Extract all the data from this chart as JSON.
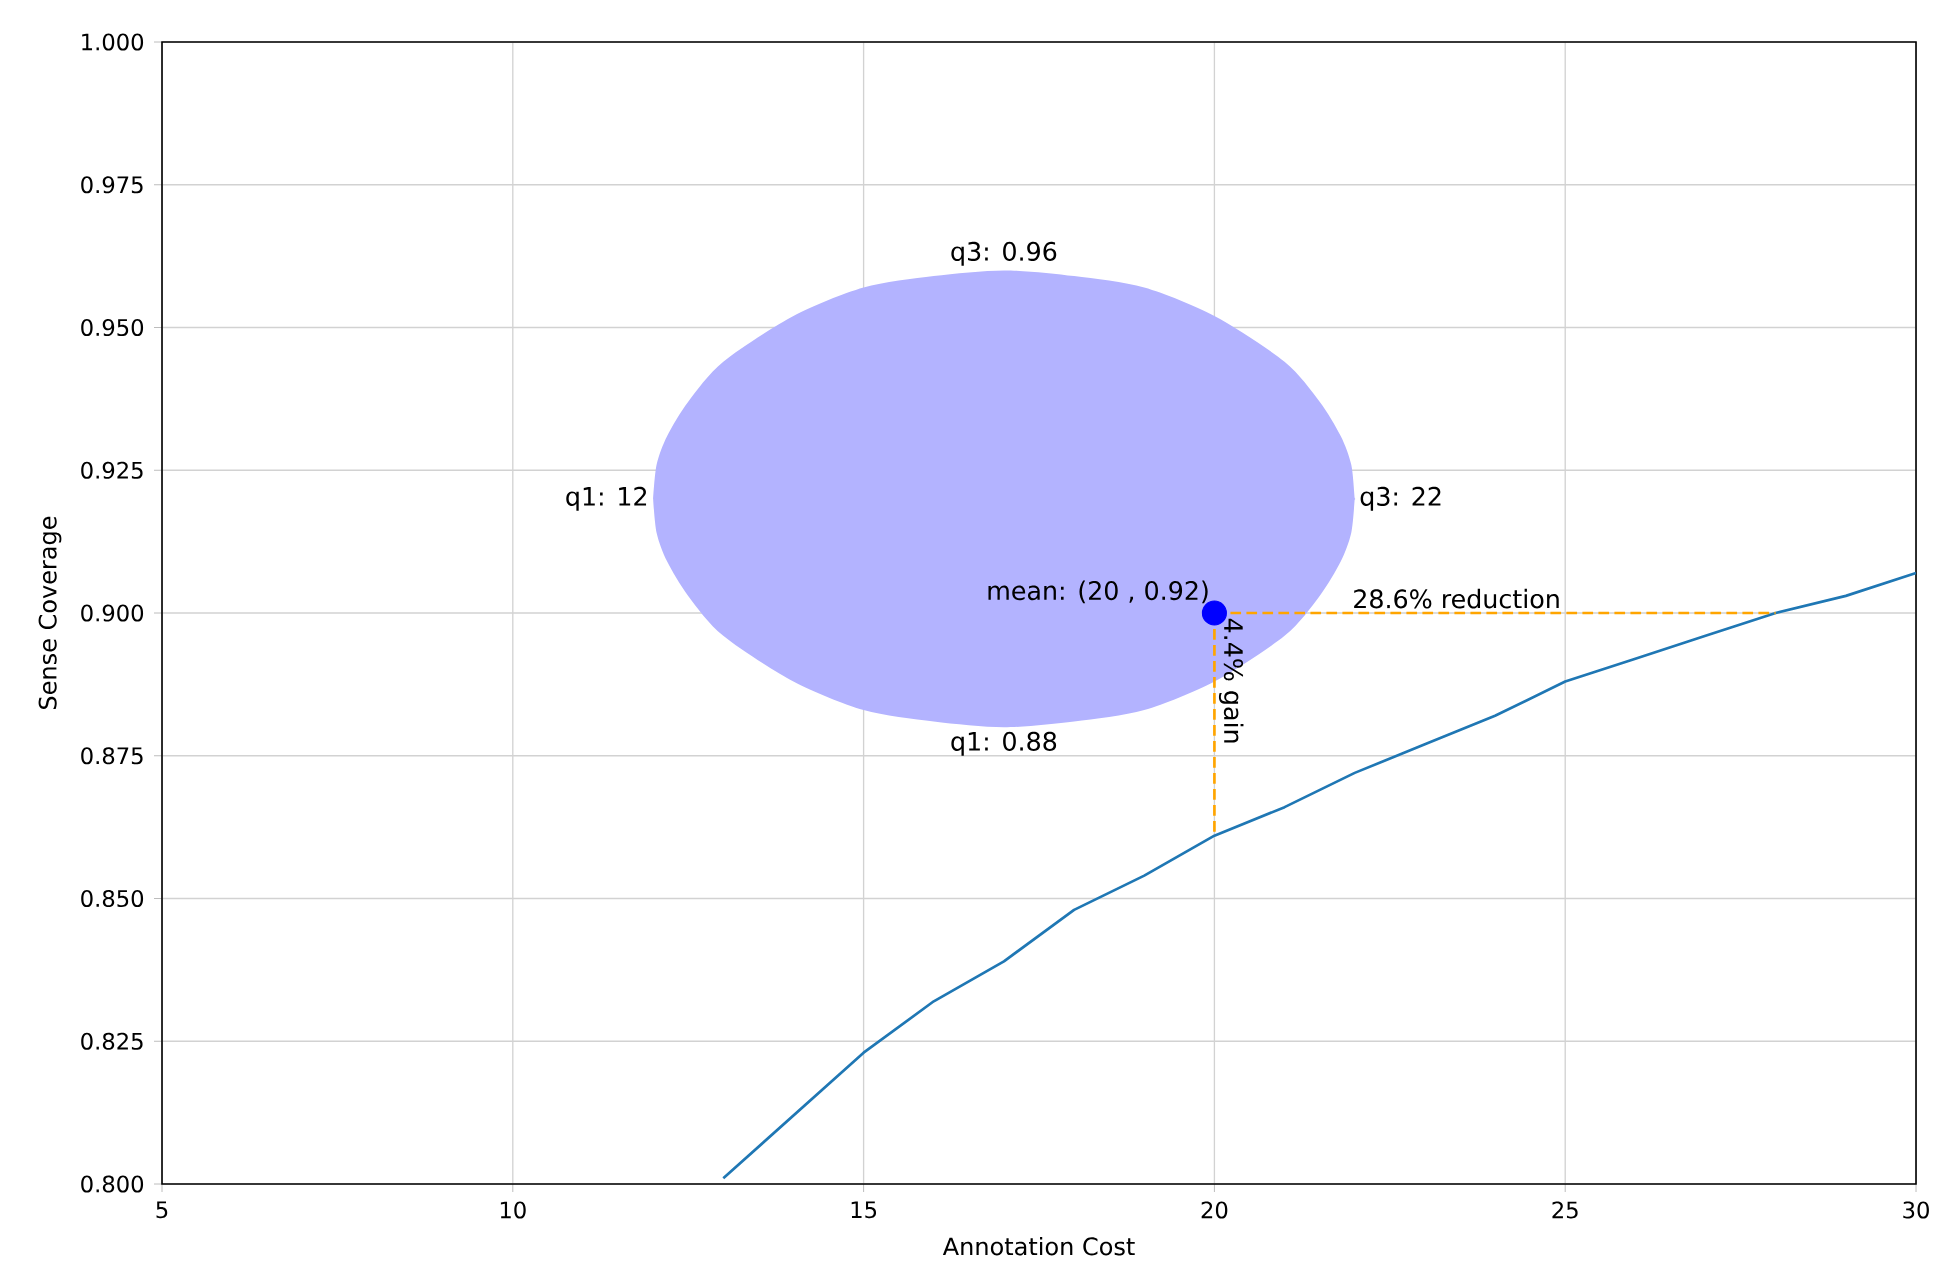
{
  "chart_data": {
    "type": "line",
    "xlabel": "Annotation Cost",
    "ylabel": "Sense Coverage",
    "xlim": [
      5,
      30
    ],
    "ylim": [
      0.8,
      1.0
    ],
    "xticks": [
      5,
      10,
      15,
      20,
      25,
      30
    ],
    "yticks": [
      {
        "value": 0.8,
        "label": "0.800"
      },
      {
        "value": 0.825,
        "label": "0.825"
      },
      {
        "value": 0.85,
        "label": "0.850"
      },
      {
        "value": 0.875,
        "label": "0.875"
      },
      {
        "value": 0.9,
        "label": "0.900"
      },
      {
        "value": 0.925,
        "label": "0.925"
      },
      {
        "value": 0.95,
        "label": "0.950"
      },
      {
        "value": 0.975,
        "label": "0.975"
      },
      {
        "value": 1.0,
        "label": "1.000"
      }
    ],
    "grid": true,
    "series": [
      {
        "type": "area",
        "color": "#b3b3ff",
        "x": [
          12,
          12.05,
          12.2,
          12.5,
          13,
          14,
          15,
          16,
          17,
          18,
          19,
          20,
          21,
          21.5,
          21.8,
          21.95,
          22
        ],
        "values": [
          null,
          null,
          null,
          null,
          null,
          null,
          null,
          null,
          null,
          null,
          null,
          null,
          null,
          null,
          null,
          null,
          null
        ],
        "upper": [
          0.92,
          0.926,
          0.931,
          0.937,
          0.944,
          0.952,
          0.957,
          0.959,
          0.96,
          0.959,
          0.957,
          0.952,
          0.944,
          0.937,
          0.931,
          0.926,
          0.92
        ],
        "lower": [
          0.92,
          0.914,
          0.909,
          0.903,
          0.896,
          0.888,
          0.883,
          0.881,
          0.88,
          0.881,
          0.883,
          0.888,
          0.896,
          0.903,
          0.909,
          0.914,
          0.92
        ]
      },
      {
        "color": "#1f77b4",
        "line_style": "solid",
        "x": [
          13,
          14,
          15,
          16,
          17,
          18,
          19,
          20,
          21,
          22,
          23,
          24,
          25,
          26,
          27,
          28,
          29,
          30
        ],
        "values": [
          0.801,
          0.812,
          0.823,
          0.832,
          0.839,
          0.848,
          0.854,
          0.861,
          0.866,
          0.872,
          0.877,
          0.882,
          0.888,
          0.892,
          0.896,
          0.9,
          0.903,
          0.907
        ]
      },
      {
        "type": "line",
        "color": "#ffa500",
        "line_style": "dashed",
        "x": [
          20,
          28
        ],
        "values": [
          0.9,
          0.9
        ]
      },
      {
        "type": "line",
        "color": "#ffa500",
        "line_style": "dashed",
        "x": [
          20,
          20
        ],
        "values": [
          0.9,
          0.861
        ]
      },
      {
        "type": "scatter",
        "color": "#0000ff",
        "marker": "circle",
        "x": [
          20
        ],
        "values": [
          0.9
        ]
      }
    ],
    "annotations": [
      "q3: 0.96",
      "q1: 0.88",
      "q1: 12",
      "q3: 22",
      "mean: (20 , 0.92)",
      "28.6% reduction",
      "4.4% gain"
    ]
  }
}
